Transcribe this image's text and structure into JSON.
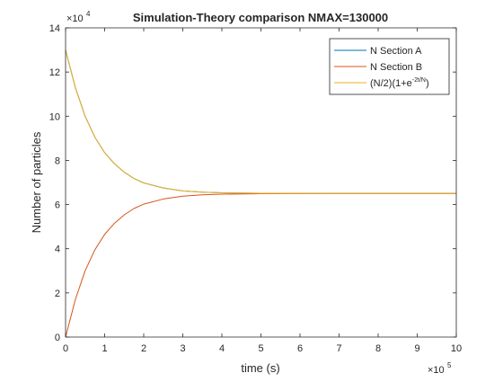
{
  "chart_data": {
    "type": "line",
    "title": "Simulation-Theory comparison NMAX=130000",
    "xlabel": "time (s)",
    "ylabel": "Number of particles",
    "x_exponent_label": "×10",
    "x_exponent_power": "5",
    "y_exponent_label": "×10",
    "y_exponent_power": "4",
    "xlim": [
      0,
      1000000
    ],
    "ylim": [
      0,
      140000
    ],
    "x_ticks": [
      0,
      100000,
      200000,
      300000,
      400000,
      500000,
      600000,
      700000,
      800000,
      900000,
      1000000
    ],
    "x_tick_labels": [
      "0",
      "1",
      "2",
      "3",
      "4",
      "5",
      "6",
      "7",
      "8",
      "9",
      "10"
    ],
    "y_ticks": [
      0,
      20000,
      40000,
      60000,
      80000,
      100000,
      120000,
      140000
    ],
    "y_tick_labels": [
      "0",
      "2",
      "4",
      "6",
      "8",
      "10",
      "12",
      "14"
    ],
    "grid": false,
    "legend_position": "top-right",
    "x": [
      0,
      25000,
      50000,
      75000,
      100000,
      125000,
      150000,
      175000,
      200000,
      250000,
      300000,
      350000,
      400000,
      500000,
      600000,
      700000,
      800000,
      900000,
      1000000
    ],
    "series": [
      {
        "name": "N Section A",
        "color": "#0072BD",
        "values": [
          130000,
          113000,
          100000,
          90500,
          83500,
          78500,
          74700,
          71800,
          69800,
          67500,
          66200,
          65600,
          65300,
          65100,
          65050,
          65000,
          65000,
          65000,
          65000
        ]
      },
      {
        "name": "N Section B",
        "color": "#D95319",
        "values": [
          0,
          17000,
          30000,
          39500,
          46500,
          51500,
          55300,
          58200,
          60200,
          62500,
          63800,
          64400,
          64700,
          64900,
          64950,
          65000,
          65000,
          65000,
          65000
        ]
      },
      {
        "name": "(N/2)(1+e^(-2t/N))",
        "color": "#EDB120",
        "values": [
          130000,
          113000,
          100000,
          90500,
          83500,
          78500,
          74700,
          71800,
          69800,
          67500,
          66200,
          65600,
          65300,
          65100,
          65050,
          65000,
          65000,
          65000,
          65000
        ]
      }
    ],
    "legend": {
      "entry_a": "N Section A",
      "entry_b": "N Section B",
      "entry_c_base": "(N/2)(1+e",
      "entry_c_exp": "-2t/N",
      "entry_c_close": ")"
    }
  }
}
